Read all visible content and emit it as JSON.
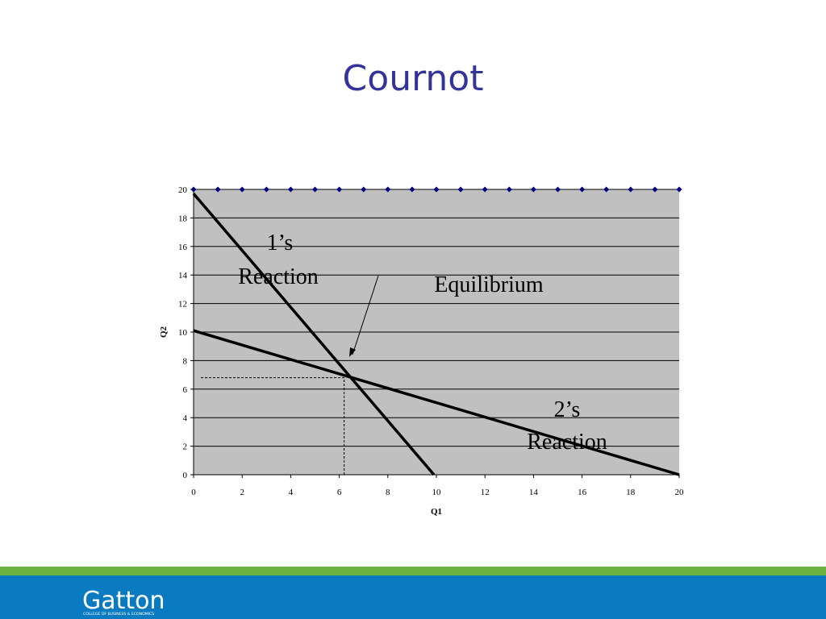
{
  "title": "Cournot",
  "chart_data": {
    "type": "line",
    "x_label": "Q1",
    "y_label": "Q2",
    "xlim": [
      0,
      20
    ],
    "ylim": [
      0,
      20
    ],
    "xticks": [
      0,
      2,
      4,
      6,
      8,
      10,
      12,
      14,
      16,
      18,
      20
    ],
    "yticks": [
      0,
      2,
      4,
      6,
      8,
      10,
      12,
      14,
      16,
      18,
      20
    ],
    "grid": true,
    "plot_color": "#c0c0c0",
    "series": [
      {
        "color": "#000080",
        "marker": "diamond",
        "x": [
          0,
          1,
          2,
          3,
          4,
          5,
          6,
          7,
          8,
          9,
          10,
          11,
          12,
          13,
          14,
          15,
          16,
          17,
          18,
          19,
          20
        ],
        "values": [
          20,
          20,
          20,
          20,
          20,
          20,
          20,
          20,
          20,
          20,
          20,
          20,
          20,
          20,
          20,
          20,
          20,
          20,
          20,
          20,
          20
        ]
      },
      {
        "color": "#000000",
        "x": [
          0,
          9.9
        ],
        "values": [
          19.7,
          0
        ]
      },
      {
        "color": "#000000",
        "x": [
          0,
          20
        ],
        "values": [
          10.1,
          0
        ]
      },
      {
        "color": "#000000",
        "dash": true,
        "x": [
          0.3,
          6.2,
          6.2
        ],
        "values": [
          6.8,
          6.8,
          0
        ]
      }
    ],
    "annotations": [
      "1’s",
      "Reaction",
      "Equilibrium",
      "2’s",
      "Reaction"
    ]
  },
  "footer": {
    "brand": "Gatton",
    "subtitle": "COLLEGE OF BUSINESS & ECONOMICS"
  }
}
